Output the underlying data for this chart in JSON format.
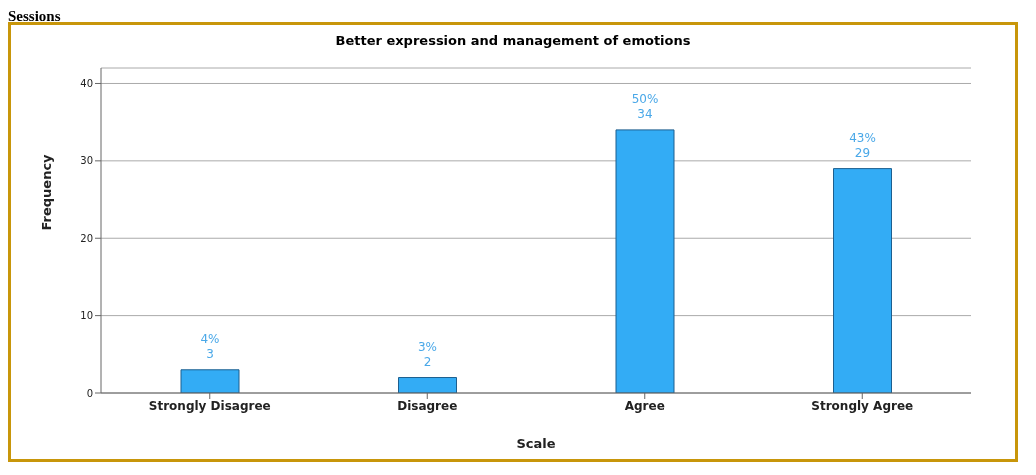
{
  "chart_data": {
    "type": "bar",
    "title": "Better expression and management of emotions",
    "xlabel": "Scale",
    "ylabel": "Frequency",
    "annotations": [
      "Sessions"
    ],
    "categories": [
      "Strongly Disagree",
      "Disagree",
      "Agree",
      "Strongly Agree"
    ],
    "values": [
      3,
      2,
      34,
      29
    ],
    "color": "#33acf5",
    "value_labels": [
      "4%\n3",
      "3%\n2",
      "50%\n34",
      "43%\n29"
    ],
    "ylim": [
      0,
      42
    ],
    "yticks": [
      0,
      10,
      20,
      30,
      40
    ],
    "grid": "y"
  }
}
